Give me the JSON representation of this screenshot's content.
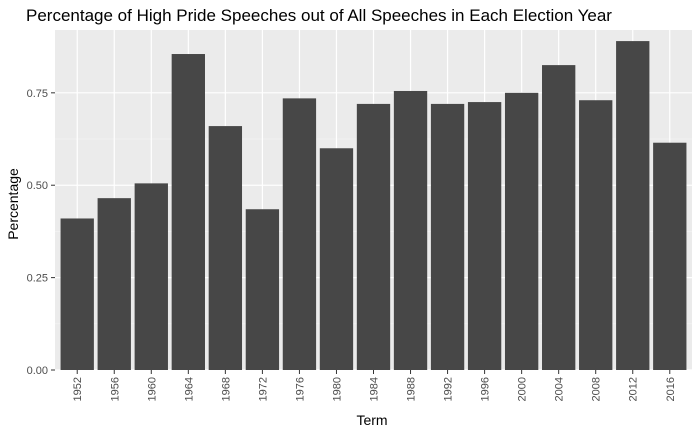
{
  "chart_data": {
    "type": "bar",
    "title": "Percentage of High Pride Speeches out of All Speeches in Each Election Year",
    "xlabel": "Term",
    "ylabel": "Percentage",
    "categories": [
      "1952",
      "1956",
      "1960",
      "1964",
      "1968",
      "1972",
      "1976",
      "1980",
      "1984",
      "1988",
      "1992",
      "1996",
      "2000",
      "2004",
      "2008",
      "2012",
      "2016"
    ],
    "values": [
      0.41,
      0.465,
      0.505,
      0.855,
      0.66,
      0.435,
      0.735,
      0.6,
      0.72,
      0.755,
      0.72,
      0.725,
      0.75,
      0.825,
      0.73,
      0.89,
      0.615
    ],
    "ylim": [
      0,
      0.92
    ],
    "yticks": [
      0,
      0.25,
      0.5,
      0.75
    ],
    "ytick_labels": [
      "0.00",
      "0.25",
      "0.50",
      "0.75"
    ],
    "grid": true,
    "colors": {
      "bar": "#474747",
      "panel": "#ebebeb",
      "grid_major": "#ffffff",
      "grid_minor": "#f5f5f5"
    }
  }
}
